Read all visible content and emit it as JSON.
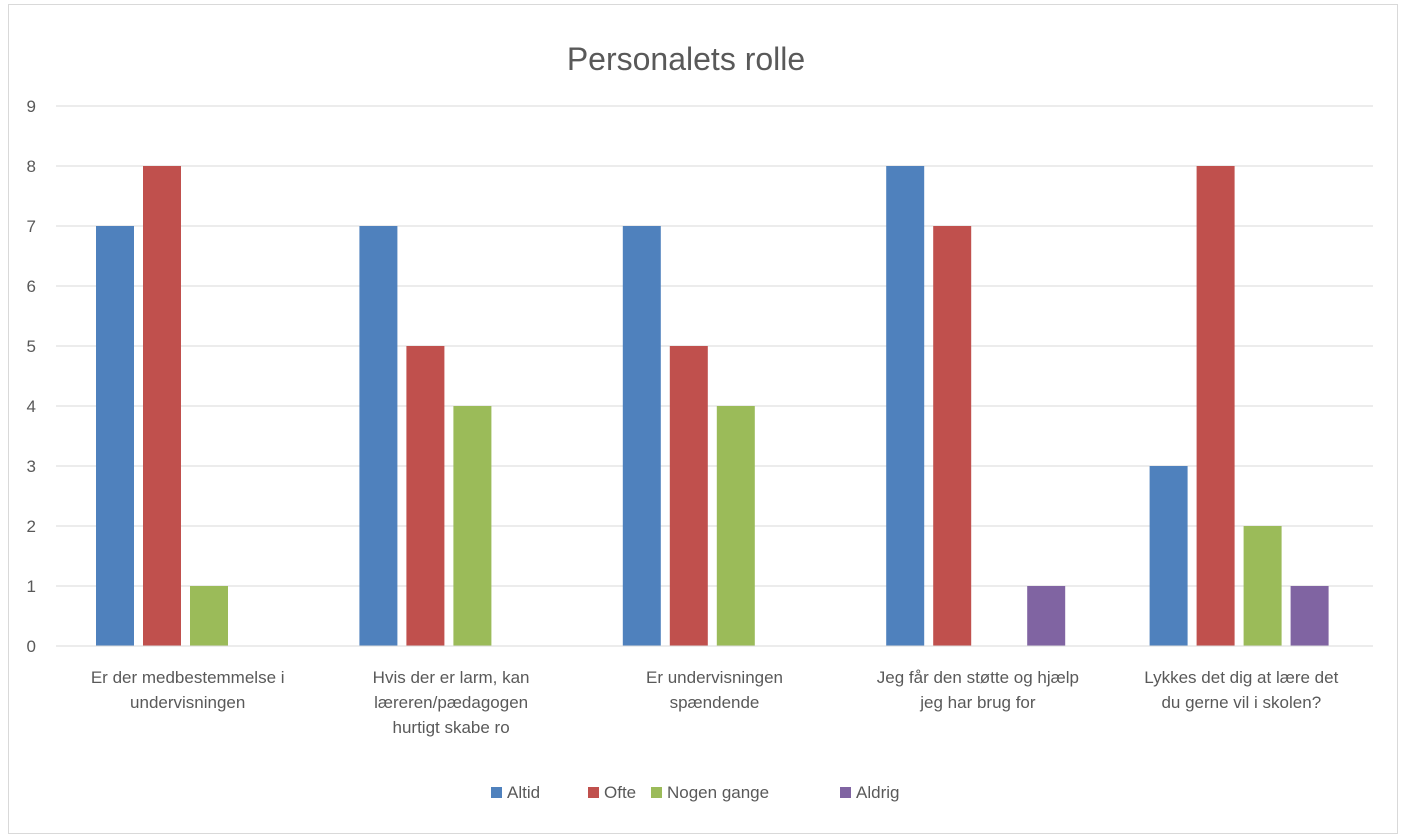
{
  "chart_data": {
    "type": "bar",
    "title": "Personalets rolle",
    "categories": [
      [
        "Er der medbestemmelse i",
        "undervisningen"
      ],
      [
        "Hvis der er larm,  kan",
        "læreren/pædagogen",
        "hurtigt skabe ro"
      ],
      [
        "Er undervisningen",
        "spændende"
      ],
      [
        "Jeg får den støtte og hjælp",
        "jeg har brug for"
      ],
      [
        "Lykkes det dig at lære det",
        "du gerne vil i skolen?"
      ]
    ],
    "series": [
      {
        "name": "Altid",
        "color": "#4f81bd",
        "values": [
          7,
          7,
          7,
          8,
          3
        ]
      },
      {
        "name": "Ofte",
        "color": "#c0504d",
        "values": [
          8,
          5,
          5,
          7,
          8
        ]
      },
      {
        "name": "Nogen gange",
        "color": "#9bbb59",
        "values": [
          1,
          4,
          4,
          0,
          2
        ]
      },
      {
        "name": "Aldrig",
        "color": "#8064a2",
        "values": [
          0,
          0,
          0,
          1,
          1
        ]
      }
    ],
    "yticks": [
      "0",
      "1",
      "2",
      "3",
      "4",
      "5",
      "6",
      "7",
      "8",
      "9"
    ],
    "ylim": [
      0,
      9
    ],
    "grid": true,
    "legend": "bottom"
  }
}
